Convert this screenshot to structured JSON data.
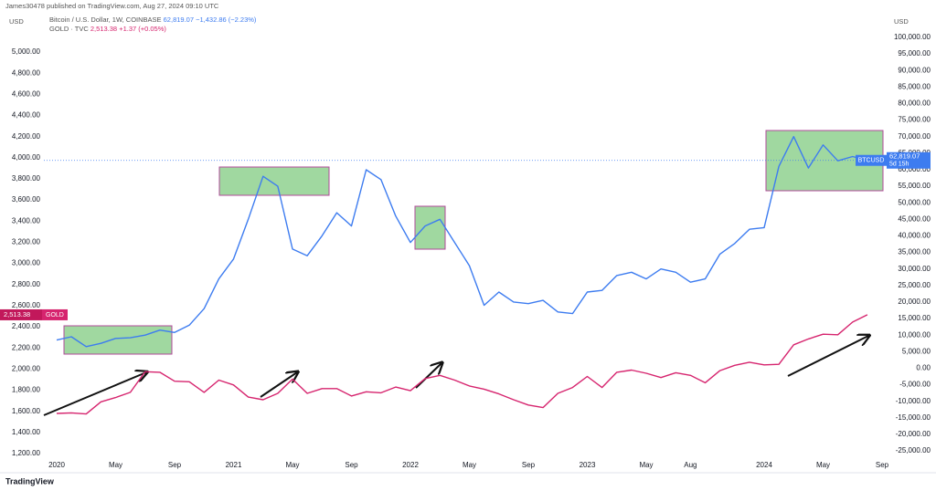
{
  "header": {
    "publisher": "James30478 published on TradingView.com, Aug 27, 2024 09:10 UTC",
    "left_unit": "USD",
    "right_unit": "USD",
    "brand": "TradingView"
  },
  "legend_info": {
    "btc_price": "62,819.07",
    "btc_change": "−1,432.86 (−2.23%)",
    "gold_price": "2,513.38",
    "gold_change": "+1.37 (+0.05%)"
  },
  "price_tags": {
    "btc_symbol": "BTCUSD",
    "btc_price": "62,819.07",
    "btc_countdown": "5d 15h",
    "gold_price": "2,513.38",
    "gold_symbol": "GOLD"
  },
  "chart_data": {
    "type": "line",
    "categories": [
      "2020",
      null,
      null,
      null,
      "May",
      null,
      null,
      null,
      "Sep",
      null,
      null,
      null,
      "2021",
      null,
      null,
      null,
      "May",
      null,
      null,
      null,
      "Sep",
      null,
      null,
      null,
      "2022",
      null,
      null,
      null,
      "May",
      null,
      null,
      null,
      "Sep",
      null,
      null,
      null,
      "2023",
      null,
      null,
      null,
      "May",
      null,
      null,
      "Aug",
      null,
      null,
      null,
      null,
      "2024",
      null,
      null,
      null,
      "May",
      null,
      null,
      null,
      "Sep"
    ],
    "series": [
      {
        "name": "Bitcoin / U.S. Dollar, 1W, COINBASE",
        "color": "#3d7cf0",
        "axis": "y2",
        "values": [
          8500,
          9500,
          6500,
          7500,
          9000,
          9200,
          10000,
          11500,
          10800,
          13000,
          18000,
          27000,
          33000,
          45000,
          58000,
          55000,
          36000,
          34000,
          40000,
          47000,
          43000,
          60000,
          57000,
          46000,
          38000,
          43000,
          45000,
          38000,
          31000,
          19000,
          23000,
          20000,
          19500,
          20500,
          17000,
          16500,
          23000,
          23500,
          28000,
          29000,
          27000,
          30000,
          29000,
          26000,
          27000,
          34500,
          37700,
          42000,
          42500,
          61000,
          70000,
          60500,
          67500,
          62700,
          64000,
          62819.07,
          null
        ]
      },
      {
        "name": "GOLD · TVC",
        "color": "#d6246e",
        "values": [
          1580,
          1585,
          1575,
          1690,
          1730,
          1780,
          1975,
          1970,
          1885,
          1880,
          1780,
          1895,
          1850,
          1735,
          1710,
          1770,
          1905,
          1770,
          1815,
          1815,
          1745,
          1785,
          1775,
          1830,
          1795,
          1910,
          1940,
          1895,
          1840,
          1810,
          1765,
          1710,
          1660,
          1635,
          1770,
          1825,
          1930,
          1825,
          1970,
          1990,
          1960,
          1920,
          1965,
          1940,
          1870,
          1985,
          2035,
          2065,
          2040,
          2045,
          2230,
          2285,
          2330,
          2325,
          2445,
          2513.38,
          null
        ]
      }
    ],
    "ylim": [
      1131,
      5320
    ],
    "yticks": [
      {
        "value": 1200,
        "label": "1,200.00"
      },
      {
        "value": 1400,
        "label": "1,400.00"
      },
      {
        "value": 1600,
        "label": "1,600.00"
      },
      {
        "value": 1800,
        "label": "1,800.00"
      },
      {
        "value": 2000,
        "label": "2,000.00"
      },
      {
        "value": 2200,
        "label": "2,200.00"
      },
      {
        "value": 2400,
        "label": "2,400.00"
      },
      {
        "value": 2600,
        "label": "2,600.00"
      },
      {
        "value": 2800,
        "label": "2,800.00"
      },
      {
        "value": 3000,
        "label": "3,000.00"
      },
      {
        "value": 3200,
        "label": "3,200.00"
      },
      {
        "value": 3400,
        "label": "3,400.00"
      },
      {
        "value": 3600,
        "label": "3,600.00"
      },
      {
        "value": 3800,
        "label": "3,800.00"
      },
      {
        "value": 4000,
        "label": "4,000.00"
      },
      {
        "value": 4200,
        "label": "4,200.00"
      },
      {
        "value": 4400,
        "label": "4,400.00"
      },
      {
        "value": 4600,
        "label": "4,600.00"
      },
      {
        "value": 4800,
        "label": "4,800.00"
      },
      {
        "value": 5000,
        "label": "5,000.00"
      }
    ],
    "y2lim": [
      -28035,
      105795
    ],
    "y2ticks": [
      {
        "value": -25000,
        "label": "-25,000.00"
      },
      {
        "value": -20000,
        "label": "-20,000.00"
      },
      {
        "value": -15000,
        "label": "-15,000.00"
      },
      {
        "value": -10000,
        "label": "-10,000.00"
      },
      {
        "value": -5000,
        "label": "-5,000.00"
      },
      {
        "value": 0,
        "label": "0.00"
      },
      {
        "value": 5000,
        "label": "5,000.00"
      },
      {
        "value": 10000,
        "label": "10,000.00"
      },
      {
        "value": 15000,
        "label": "15,000.00"
      },
      {
        "value": 20000,
        "label": "20,000.00"
      },
      {
        "value": 25000,
        "label": "25,000.00"
      },
      {
        "value": 30000,
        "label": "30,000.00"
      },
      {
        "value": 35000,
        "label": "35,000.00"
      },
      {
        "value": 40000,
        "label": "40,000.00"
      },
      {
        "value": 45000,
        "label": "45,000.00"
      },
      {
        "value": 50000,
        "label": "50,000.00"
      },
      {
        "value": 55000,
        "label": "55,000.00"
      },
      {
        "value": 60000,
        "label": "60,000.00"
      },
      {
        "value": 65000,
        "label": "65,000.00"
      },
      {
        "value": 70000,
        "label": "70,000.00"
      },
      {
        "value": 75000,
        "label": "75,000.00"
      },
      {
        "value": 80000,
        "label": "80,000.00"
      },
      {
        "value": 85000,
        "label": "85,000.00"
      },
      {
        "value": 90000,
        "label": "90,000.00"
      },
      {
        "value": 95000,
        "label": "95,000.00"
      },
      {
        "value": 100000,
        "label": "100,000.00"
      }
    ],
    "grid": false
  }
}
